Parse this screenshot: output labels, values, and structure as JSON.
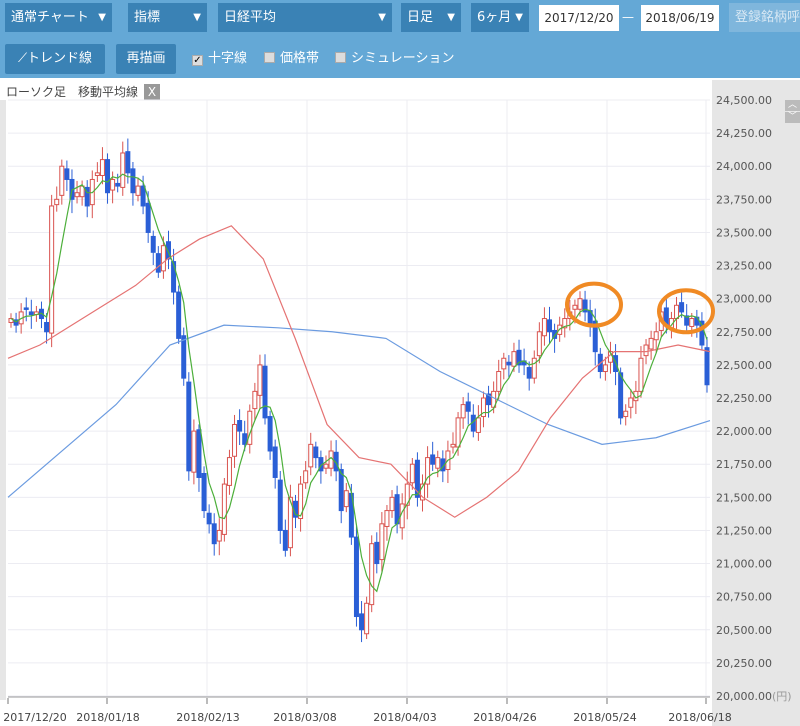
{
  "toolbar": {
    "chart_type": "通常チャート",
    "indicator": "指標",
    "symbol": "日経平均",
    "interval": "日足",
    "range": "6ヶ月",
    "date_from": "2017/12/20",
    "date_sep": "—",
    "date_to": "2018/06/19",
    "register": "登録銘柄呼出"
  },
  "tools": {
    "trend": "トレンド線",
    "redraw": "再描画",
    "checks": [
      {
        "label": "十字線",
        "checked": true
      },
      {
        "label": "価格帯",
        "checked": false
      },
      {
        "label": "シミュレーション",
        "checked": false
      }
    ]
  },
  "legend": {
    "candle": "ローソク足",
    "ma": "移動平均線",
    "close": "X"
  },
  "chart_data": {
    "type": "candlestick",
    "ylim": [
      20000,
      24500
    ],
    "yticks": [
      "24,500.00",
      "24,250.00",
      "24,000.00",
      "23,750.00",
      "23,500.00",
      "23,250.00",
      "23,000.00",
      "22,750.00",
      "22,500.00",
      "22,250.00",
      "22,000.00",
      "21,750.00",
      "21,500.00",
      "21,250.00",
      "21,000.00",
      "20,750.00",
      "20,500.00",
      "20,250.00",
      "20,000.00"
    ],
    "yunit": "(円)",
    "xticks": [
      "2017/12/20",
      "2018/01/18",
      "2018/02/13",
      "2018/03/08",
      "2018/04/03",
      "2018/04/26",
      "2018/05/24",
      "2018/06/18"
    ],
    "colors": {
      "up": "#d9534f",
      "down": "#2a5fd6",
      "ma_short": "#4caf3a",
      "ma_mid": "#e57373",
      "ma_long": "#6b9be0",
      "highlight": "#f08a24"
    },
    "close": [
      22850,
      22800,
      22900,
      22920,
      22880,
      22900,
      22850,
      22750,
      23700,
      23750,
      24000,
      23900,
      23750,
      23800,
      23850,
      23700,
      23900,
      23950,
      24050,
      23800,
      23900,
      23850,
      24100,
      23950,
      23800,
      23850,
      23700,
      23500,
      23350,
      23200,
      23400,
      23300,
      23050,
      22700,
      22400,
      21700,
      22000,
      21650,
      21400,
      21300,
      21150,
      21250,
      21600,
      21800,
      22050,
      22000,
      21900,
      22150,
      22300,
      22500,
      22100,
      21850,
      21650,
      21250,
      21100,
      21500,
      21350,
      21600,
      21700,
      21900,
      21800,
      21700,
      21750,
      21850,
      21700,
      21400,
      21550,
      21200,
      20600,
      20500,
      20700,
      21150,
      21000,
      21300,
      21400,
      21500,
      21300,
      21450,
      21600,
      21750,
      21500,
      21600,
      21800,
      21750,
      21800,
      21700,
      21850,
      21900,
      22100,
      22200,
      22150,
      22000,
      22100,
      22250,
      22200,
      22300,
      22450,
      22550,
      22500,
      22600,
      22500,
      22500,
      22400,
      22550,
      22750,
      22850,
      22750,
      22700,
      22800,
      22850,
      22900,
      22950,
      23000,
      22900,
      22800,
      22600,
      22450,
      22500,
      22600,
      22450,
      22100,
      22150,
      22250,
      22300,
      22550,
      22650,
      22700,
      22750,
      22900,
      22800,
      22850,
      22950,
      22900,
      22800,
      22850,
      22800,
      22650,
      22350
    ],
    "ma_mid": [
      22550,
      22650,
      22800,
      22950,
      23100,
      23300,
      23450,
      23550,
      23300,
      22700,
      22050,
      21800,
      21750,
      21500,
      21350,
      21500,
      21700,
      22100,
      22400,
      22600,
      22600,
      22650,
      22600
    ],
    "ma_long": [
      21500,
      21850,
      22200,
      22650,
      22800,
      22780,
      22750,
      22700,
      22450,
      22250,
      22050,
      21900,
      21950,
      22080
    ],
    "highlights": [
      23000,
      22950
    ]
  }
}
